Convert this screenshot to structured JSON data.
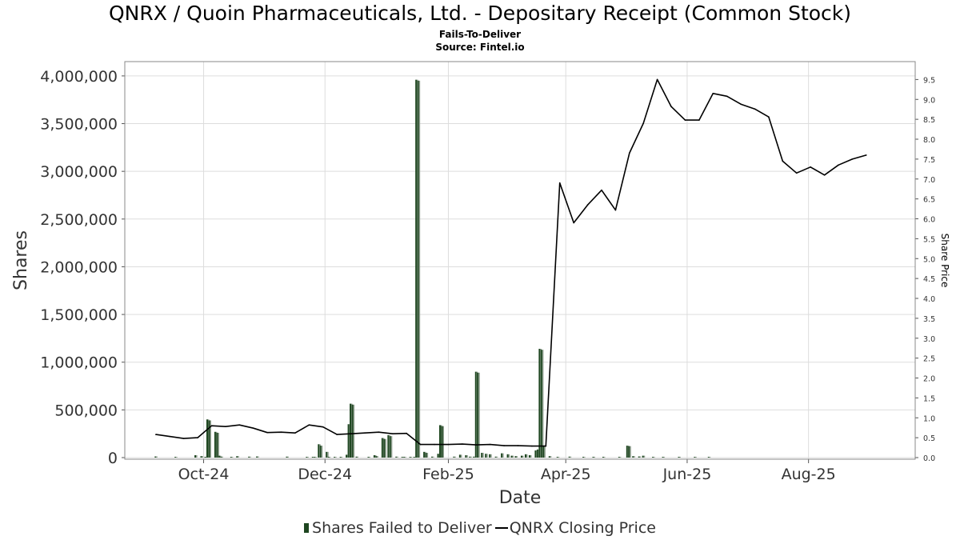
{
  "header": {
    "title": "QNRX / Quoin Pharmaceuticals, Ltd. - Depositary Receipt (Common Stock)",
    "subtitle": "Fails-To-Deliver",
    "source": "Source: Fintel.io"
  },
  "legend": {
    "bars_label": "Shares Failed to Deliver",
    "line_label": "QNRX Closing Price"
  },
  "colors": {
    "bar_dark": "#1e4620",
    "bar_light": "#8a9a8a",
    "line": "#000000",
    "grid": "#dddddd",
    "frame": "#888888"
  },
  "chart_data": {
    "type": "bar+line",
    "xlabel": "Date",
    "ylabel": "Shares",
    "y2label": "Share Price",
    "ylim": [
      0,
      4150000
    ],
    "y2lim": [
      0,
      9.95
    ],
    "x_range": [
      "2024-08-24",
      "2025-09-22"
    ],
    "x_ticks": [
      {
        "date": "2024-10-01",
        "label": "Oct-24"
      },
      {
        "date": "2024-12-01",
        "label": "Dec-24"
      },
      {
        "date": "2025-02-01",
        "label": "Feb-25"
      },
      {
        "date": "2025-04-01",
        "label": "Apr-25"
      },
      {
        "date": "2025-06-01",
        "label": "Jun-25"
      },
      {
        "date": "2025-08-01",
        "label": "Aug-25"
      }
    ],
    "y_ticks": [
      {
        "value": 0,
        "label": "0"
      },
      {
        "value": 500000,
        "label": "500,000"
      },
      {
        "value": 1000000,
        "label": "1,000,000"
      },
      {
        "value": 1500000,
        "label": "1,500,000"
      },
      {
        "value": 2000000,
        "label": "2,000,000"
      },
      {
        "value": 2500000,
        "label": "2,500,000"
      },
      {
        "value": 3000000,
        "label": "3,000,000"
      },
      {
        "value": 3500000,
        "label": "3,500,000"
      },
      {
        "value": 4000000,
        "label": "4,000,000"
      }
    ],
    "y2_ticks": [
      "0.0",
      "0.5",
      "1.0",
      "1.5",
      "2.0",
      "2.5",
      "3.0",
      "3.5",
      "4.0",
      "4.5",
      "5.0",
      "5.5",
      "6.0",
      "6.5",
      "7.0",
      "7.5",
      "8.0",
      "8.5",
      "9.0",
      "9.5"
    ],
    "grid": true,
    "legend_position": "bottom",
    "series": [
      {
        "name": "Shares Failed to Deliver",
        "type": "bar",
        "axis": "left",
        "points": [
          {
            "x": "2024-09-07",
            "y": 12000
          },
          {
            "x": "2024-09-17",
            "y": 5000
          },
          {
            "x": "2024-09-27",
            "y": 25000
          },
          {
            "x": "2024-09-30",
            "y": 15000
          },
          {
            "x": "2024-10-02",
            "y": 8000
          },
          {
            "x": "2024-10-03",
            "y": 400000
          },
          {
            "x": "2024-10-04",
            "y": 390000
          },
          {
            "x": "2024-10-07",
            "y": 270000
          },
          {
            "x": "2024-10-08",
            "y": 260000
          },
          {
            "x": "2024-10-09",
            "y": 20000
          },
          {
            "x": "2024-10-10",
            "y": 10000
          },
          {
            "x": "2024-10-15",
            "y": 8000
          },
          {
            "x": "2024-10-18",
            "y": 15000
          },
          {
            "x": "2024-10-24",
            "y": 10000
          },
          {
            "x": "2024-10-28",
            "y": 12000
          },
          {
            "x": "2024-11-12",
            "y": 10000
          },
          {
            "x": "2024-11-22",
            "y": 8000
          },
          {
            "x": "2024-11-25",
            "y": 6000
          },
          {
            "x": "2024-11-26",
            "y": 6000
          },
          {
            "x": "2024-11-28",
            "y": 140000
          },
          {
            "x": "2024-11-29",
            "y": 125000
          },
          {
            "x": "2024-12-02",
            "y": 60000
          },
          {
            "x": "2024-12-03",
            "y": 8000
          },
          {
            "x": "2024-12-06",
            "y": 6000
          },
          {
            "x": "2024-12-09",
            "y": 5000
          },
          {
            "x": "2024-12-12",
            "y": 30000
          },
          {
            "x": "2024-12-13",
            "y": 350000
          },
          {
            "x": "2024-12-14",
            "y": 565000
          },
          {
            "x": "2024-12-15",
            "y": 555000
          },
          {
            "x": "2024-12-17",
            "y": 10000
          },
          {
            "x": "2024-12-23",
            "y": 8000
          },
          {
            "x": "2024-12-26",
            "y": 25000
          },
          {
            "x": "2024-12-27",
            "y": 15000
          },
          {
            "x": "2024-12-30",
            "y": 205000
          },
          {
            "x": "2024-12-31",
            "y": 195000
          },
          {
            "x": "2025-01-02",
            "y": 235000
          },
          {
            "x": "2025-01-03",
            "y": 225000
          },
          {
            "x": "2025-01-06",
            "y": 10000
          },
          {
            "x": "2025-01-09",
            "y": 8000
          },
          {
            "x": "2025-01-10",
            "y": 6000
          },
          {
            "x": "2025-01-13",
            "y": 5000
          },
          {
            "x": "2025-01-15",
            "y": 5000
          },
          {
            "x": "2025-01-16",
            "y": 3960000
          },
          {
            "x": "2025-01-17",
            "y": 3950000
          },
          {
            "x": "2025-01-20",
            "y": 60000
          },
          {
            "x": "2025-01-21",
            "y": 50000
          },
          {
            "x": "2025-01-24",
            "y": 10000
          },
          {
            "x": "2025-01-27",
            "y": 40000
          },
          {
            "x": "2025-01-28",
            "y": 340000
          },
          {
            "x": "2025-01-29",
            "y": 330000
          },
          {
            "x": "2025-02-04",
            "y": 10000
          },
          {
            "x": "2025-02-07",
            "y": 30000
          },
          {
            "x": "2025-02-10",
            "y": 25000
          },
          {
            "x": "2025-02-12",
            "y": 10000
          },
          {
            "x": "2025-02-14",
            "y": 10000
          },
          {
            "x": "2025-02-15",
            "y": 900000
          },
          {
            "x": "2025-02-16",
            "y": 890000
          },
          {
            "x": "2025-02-18",
            "y": 50000
          },
          {
            "x": "2025-02-20",
            "y": 40000
          },
          {
            "x": "2025-02-22",
            "y": 35000
          },
          {
            "x": "2025-02-25",
            "y": 10000
          },
          {
            "x": "2025-02-28",
            "y": 45000
          },
          {
            "x": "2025-03-03",
            "y": 35000
          },
          {
            "x": "2025-03-05",
            "y": 20000
          },
          {
            "x": "2025-03-07",
            "y": 15000
          },
          {
            "x": "2025-03-10",
            "y": 20000
          },
          {
            "x": "2025-03-12",
            "y": 35000
          },
          {
            "x": "2025-03-14",
            "y": 25000
          },
          {
            "x": "2025-03-17",
            "y": 75000
          },
          {
            "x": "2025-03-18",
            "y": 85000
          },
          {
            "x": "2025-03-19",
            "y": 1140000
          },
          {
            "x": "2025-03-20",
            "y": 1130000
          },
          {
            "x": "2025-03-21",
            "y": 120000
          },
          {
            "x": "2025-03-24",
            "y": 15000
          },
          {
            "x": "2025-03-28",
            "y": 8000
          },
          {
            "x": "2025-04-03",
            "y": 10000
          },
          {
            "x": "2025-04-10",
            "y": 6000
          },
          {
            "x": "2025-04-15",
            "y": 5000
          },
          {
            "x": "2025-04-20",
            "y": 8000
          },
          {
            "x": "2025-04-28",
            "y": 6000
          },
          {
            "x": "2025-05-02",
            "y": 125000
          },
          {
            "x": "2025-05-03",
            "y": 120000
          },
          {
            "x": "2025-05-05",
            "y": 15000
          },
          {
            "x": "2025-05-08",
            "y": 12000
          },
          {
            "x": "2025-05-10",
            "y": 20000
          },
          {
            "x": "2025-05-15",
            "y": 8000
          },
          {
            "x": "2025-05-20",
            "y": 5000
          },
          {
            "x": "2025-05-28",
            "y": 4000
          },
          {
            "x": "2025-06-05",
            "y": 3000
          },
          {
            "x": "2025-06-12",
            "y": 3000
          }
        ]
      },
      {
        "name": "QNRX Closing Price",
        "type": "line",
        "axis": "right",
        "points": [
          {
            "x": "2024-09-07",
            "y": 0.58
          },
          {
            "x": "2024-09-14",
            "y": 0.53
          },
          {
            "x": "2024-09-21",
            "y": 0.48
          },
          {
            "x": "2024-09-28",
            "y": 0.5
          },
          {
            "x": "2024-10-05",
            "y": 0.8
          },
          {
            "x": "2024-10-12",
            "y": 0.78
          },
          {
            "x": "2024-10-19",
            "y": 0.82
          },
          {
            "x": "2024-10-26",
            "y": 0.74
          },
          {
            "x": "2024-11-02",
            "y": 0.63
          },
          {
            "x": "2024-11-09",
            "y": 0.64
          },
          {
            "x": "2024-11-16",
            "y": 0.62
          },
          {
            "x": "2024-11-23",
            "y": 0.82
          },
          {
            "x": "2024-11-30",
            "y": 0.77
          },
          {
            "x": "2024-12-07",
            "y": 0.58
          },
          {
            "x": "2024-12-14",
            "y": 0.6
          },
          {
            "x": "2024-12-21",
            "y": 0.62
          },
          {
            "x": "2024-12-28",
            "y": 0.64
          },
          {
            "x": "2025-01-04",
            "y": 0.6
          },
          {
            "x": "2025-01-11",
            "y": 0.61
          },
          {
            "x": "2025-01-18",
            "y": 0.33
          },
          {
            "x": "2025-01-25",
            "y": 0.33
          },
          {
            "x": "2025-02-01",
            "y": 0.33
          },
          {
            "x": "2025-02-08",
            "y": 0.34
          },
          {
            "x": "2025-02-15",
            "y": 0.32
          },
          {
            "x": "2025-02-22",
            "y": 0.33
          },
          {
            "x": "2025-03-01",
            "y": 0.3
          },
          {
            "x": "2025-03-08",
            "y": 0.3
          },
          {
            "x": "2025-03-15",
            "y": 0.29
          },
          {
            "x": "2025-03-22",
            "y": 0.29
          },
          {
            "x": "2025-03-29",
            "y": 6.9
          },
          {
            "x": "2025-04-05",
            "y": 5.9
          },
          {
            "x": "2025-04-12",
            "y": 6.35
          },
          {
            "x": "2025-04-19",
            "y": 6.72
          },
          {
            "x": "2025-04-26",
            "y": 6.22
          },
          {
            "x": "2025-05-03",
            "y": 7.65
          },
          {
            "x": "2025-05-10",
            "y": 8.4
          },
          {
            "x": "2025-05-17",
            "y": 9.5
          },
          {
            "x": "2025-05-24",
            "y": 8.82
          },
          {
            "x": "2025-05-31",
            "y": 8.48
          },
          {
            "x": "2025-06-07",
            "y": 8.48
          },
          {
            "x": "2025-06-14",
            "y": 9.15
          },
          {
            "x": "2025-06-21",
            "y": 9.08
          },
          {
            "x": "2025-06-28",
            "y": 8.88
          },
          {
            "x": "2025-07-05",
            "y": 8.76
          },
          {
            "x": "2025-07-12",
            "y": 8.56
          },
          {
            "x": "2025-07-19",
            "y": 7.45
          },
          {
            "x": "2025-07-26",
            "y": 7.15
          },
          {
            "x": "2025-08-02",
            "y": 7.3
          },
          {
            "x": "2025-08-09",
            "y": 7.1
          },
          {
            "x": "2025-08-16",
            "y": 7.35
          },
          {
            "x": "2025-08-23",
            "y": 7.5
          },
          {
            "x": "2025-08-30",
            "y": 7.6
          }
        ]
      }
    ]
  }
}
